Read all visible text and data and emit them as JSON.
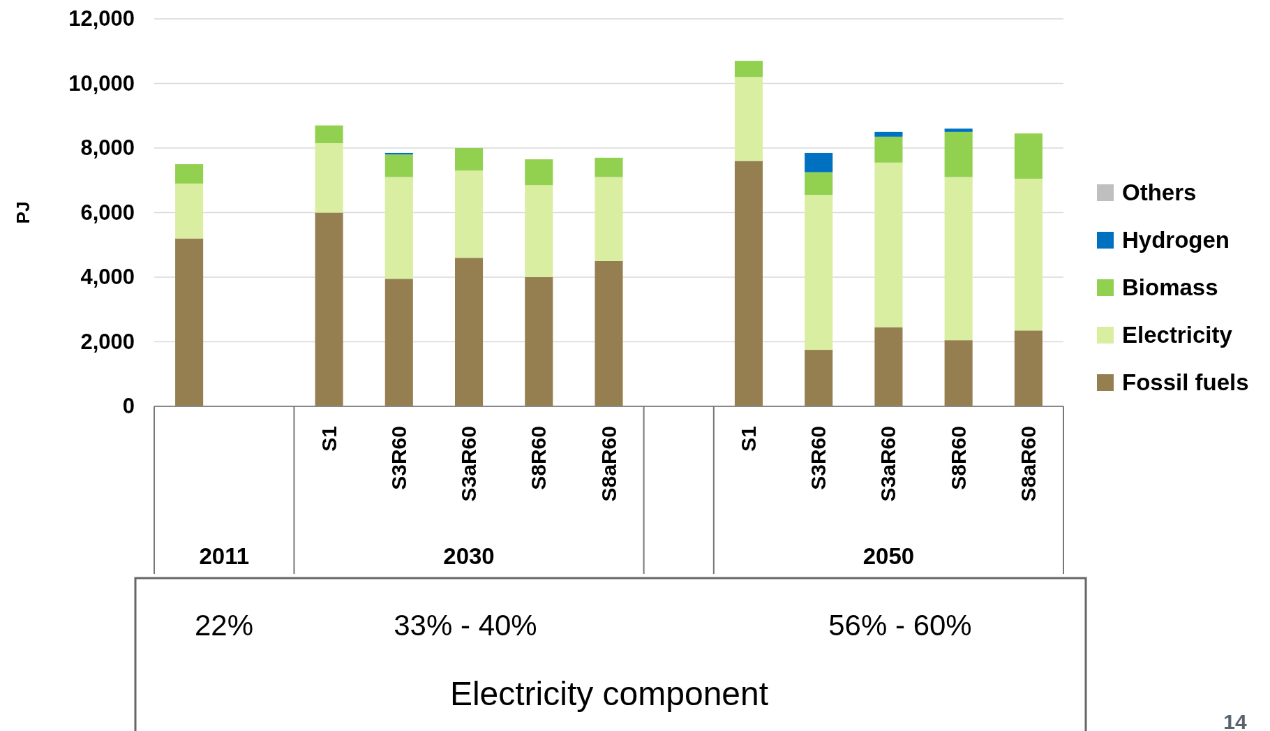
{
  "chart_data": {
    "type": "bar",
    "stacked": true,
    "ylabel": "PJ",
    "categories": [
      null,
      null,
      "S1",
      "S3R60",
      "S3aR60",
      "S8R60",
      "S8aR60",
      null,
      "S1",
      "S3R60",
      "S3aR60",
      "S8R60",
      "S8aR60"
    ],
    "series": [
      {
        "name": "Fossil fuels",
        "color": "#957f50",
        "values": [
          5200,
          null,
          6000,
          3950,
          4600,
          4000,
          4500,
          null,
          7600,
          1750,
          2450,
          2050,
          2350
        ]
      },
      {
        "name": "Electricity",
        "color": "#d9eea0",
        "values": [
          1700,
          null,
          2150,
          3150,
          2700,
          2850,
          2600,
          null,
          2600,
          4800,
          5100,
          5050,
          4700
        ]
      },
      {
        "name": "Biomass",
        "color": "#92d050",
        "values": [
          600,
          null,
          550,
          700,
          700,
          800,
          600,
          null,
          500,
          700,
          800,
          1400,
          1400
        ]
      },
      {
        "name": "Hydrogen",
        "color": "#0070c0",
        "values": [
          0,
          null,
          0,
          50,
          0,
          0,
          0,
          null,
          0,
          600,
          150,
          100,
          0
        ]
      },
      {
        "name": "Others",
        "color": "#bfbfbf",
        "values": [
          0,
          null,
          0,
          0,
          0,
          0,
          0,
          null,
          0,
          0,
          0,
          0,
          0
        ]
      }
    ],
    "ylim": [
      0,
      12000
    ],
    "yticks": [
      {
        "value": 0,
        "label": "0"
      },
      {
        "value": 2000,
        "label": "2,000"
      },
      {
        "value": 4000,
        "label": "4,000"
      },
      {
        "value": 6000,
        "label": "6,000"
      },
      {
        "value": 8000,
        "label": "8,000"
      },
      {
        "value": 10000,
        "label": "10,000"
      },
      {
        "value": 12000,
        "label": "12,000"
      }
    ],
    "grid": "y",
    "legend": "right",
    "annotations": [
      "2011",
      "2030",
      "2050",
      "22%",
      "33% - 40%",
      "56% - 60%",
      "Electricity component",
      "14"
    ]
  }
}
